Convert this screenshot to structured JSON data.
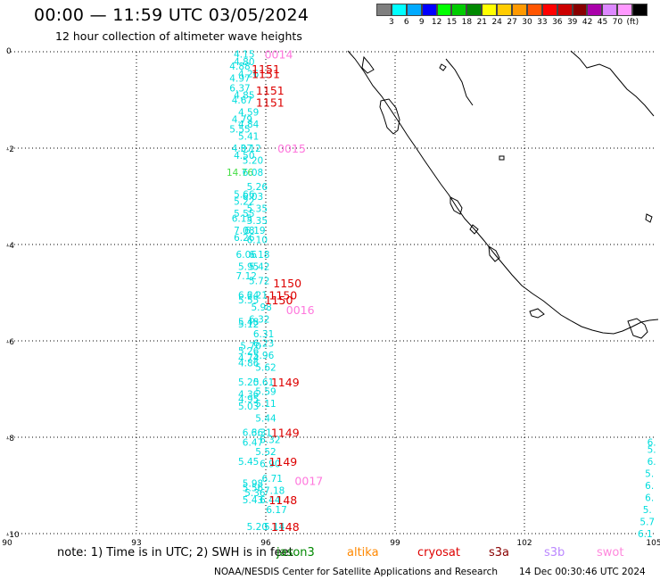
{
  "header": {
    "title": "00:00 — 11:59 UTC 03/05/2024",
    "subtitle": "12 hour collection of altimeter wave heights"
  },
  "legend": {
    "colors": [
      "#7f7f7f",
      "#00ffff",
      "#00aaff",
      "#0000ff",
      "#00ff00",
      "#00cc00",
      "#008800",
      "#ffff00",
      "#ffcc00",
      "#ff9900",
      "#ff5500",
      "#ff0000",
      "#cc0000",
      "#880000",
      "#aa00aa",
      "#dd88ff",
      "#ff99ff",
      "#000000"
    ],
    "labels": [
      "3",
      "6",
      "9",
      "12",
      "15",
      "18",
      "21",
      "24",
      "27",
      "30",
      "33",
      "36",
      "39",
      "42",
      "45",
      "70",
      "(ft)"
    ]
  },
  "axes": {
    "x_ticks": [
      "90",
      "93",
      "96",
      "99",
      "102",
      "105"
    ],
    "y_ticks": [
      "0",
      "-2",
      "-4",
      "-6",
      "-8",
      "-10"
    ]
  },
  "chart_data": {
    "type": "scatter",
    "xlim": [
      90,
      105
    ],
    "ylim": [
      -10,
      0
    ],
    "grid": true,
    "x_meaning": "longitude",
    "y_meaning": "latitude",
    "points": [
      {
        "x": 95.5,
        "y": -0.05,
        "label": "4.15",
        "color": "#00dddd"
      },
      {
        "x": 95.5,
        "y": -0.2,
        "label": "4.80",
        "color": "#00dddd"
      },
      {
        "x": 95.4,
        "y": -0.3,
        "label": "4.88",
        "color": "#00dddd"
      },
      {
        "x": 95.6,
        "y": -0.45,
        "label": "4.26",
        "color": "#00dddd"
      },
      {
        "x": 95.4,
        "y": -0.55,
        "label": "4.97",
        "color": "#00dddd"
      },
      {
        "x": 95.4,
        "y": -0.75,
        "label": "6.37",
        "color": "#00dddd"
      },
      {
        "x": 95.5,
        "y": -0.9,
        "label": "4.85",
        "color": "#00dddd"
      },
      {
        "x": 95.45,
        "y": -1.0,
        "label": "4.67",
        "color": "#00dddd"
      },
      {
        "x": 95.6,
        "y": -1.25,
        "label": "4.59",
        "color": "#00dddd"
      },
      {
        "x": 95.45,
        "y": -1.4,
        "label": "4.79",
        "color": "#00dddd"
      },
      {
        "x": 95.6,
        "y": -1.5,
        "label": "4.84",
        "color": "#00dddd"
      },
      {
        "x": 95.4,
        "y": -1.6,
        "label": "5.55",
        "color": "#00dddd"
      },
      {
        "x": 95.6,
        "y": -1.75,
        "label": "5.41",
        "color": "#00dddd"
      },
      {
        "x": 95.45,
        "y": -2.0,
        "label": "4.07",
        "color": "#00dddd"
      },
      {
        "x": 95.65,
        "y": -2.0,
        "label": "3.12",
        "color": "#00dddd"
      },
      {
        "x": 95.5,
        "y": -2.15,
        "label": "4.50",
        "color": "#00dddd"
      },
      {
        "x": 95.7,
        "y": -2.25,
        "label": "5.20",
        "color": "#00dddd"
      },
      {
        "x": 95.4,
        "y": -2.5,
        "label": "14.76",
        "color": "#44dd44"
      },
      {
        "x": 95.7,
        "y": -2.5,
        "label": "6.08",
        "color": "#00dddd"
      },
      {
        "x": 95.8,
        "y": -2.8,
        "label": "5.26",
        "color": "#00dddd"
      },
      {
        "x": 95.5,
        "y": -2.95,
        "label": "5.66",
        "color": "#00dddd"
      },
      {
        "x": 95.7,
        "y": -3.0,
        "label": "6.03",
        "color": "#00dddd"
      },
      {
        "x": 95.5,
        "y": -3.1,
        "label": "5.22",
        "color": "#00dddd"
      },
      {
        "x": 95.8,
        "y": -3.25,
        "label": "5.35",
        "color": "#00dddd"
      },
      {
        "x": 95.5,
        "y": -3.35,
        "label": "5.55",
        "color": "#00dddd"
      },
      {
        "x": 95.45,
        "y": -3.45,
        "label": "6.15",
        "color": "#00dddd"
      },
      {
        "x": 95.8,
        "y": -3.5,
        "label": "5.35",
        "color": "#00dddd"
      },
      {
        "x": 95.5,
        "y": -3.7,
        "label": "7.08",
        "color": "#00dddd"
      },
      {
        "x": 95.75,
        "y": -3.7,
        "label": "6.19",
        "color": "#00dddd"
      },
      {
        "x": 95.5,
        "y": -3.85,
        "label": "6.26",
        "color": "#00dddd"
      },
      {
        "x": 95.8,
        "y": -3.9,
        "label": "6.10",
        "color": "#00dddd"
      },
      {
        "x": 95.55,
        "y": -4.2,
        "label": "6.06",
        "color": "#00dddd"
      },
      {
        "x": 95.85,
        "y": -4.2,
        "label": "6.18",
        "color": "#00dddd"
      },
      {
        "x": 95.6,
        "y": -4.45,
        "label": "5.95",
        "color": "#00dddd"
      },
      {
        "x": 95.85,
        "y": -4.45,
        "label": "5.42",
        "color": "#00dddd"
      },
      {
        "x": 95.55,
        "y": -4.65,
        "label": "7.12",
        "color": "#00dddd"
      },
      {
        "x": 95.85,
        "y": -4.75,
        "label": "5.72",
        "color": "#00dddd"
      },
      {
        "x": 95.6,
        "y": -5.05,
        "label": "6.24",
        "color": "#00dddd"
      },
      {
        "x": 95.8,
        "y": -5.05,
        "label": "6.21",
        "color": "#00dddd"
      },
      {
        "x": 95.6,
        "y": -5.15,
        "label": "5.55",
        "color": "#00dddd"
      },
      {
        "x": 95.9,
        "y": -5.3,
        "label": "5.98",
        "color": "#00dddd"
      },
      {
        "x": 95.6,
        "y": -5.6,
        "label": "5.48",
        "color": "#00dddd"
      },
      {
        "x": 95.85,
        "y": -5.55,
        "label": "6.32",
        "color": "#00dddd"
      },
      {
        "x": 95.6,
        "y": -5.65,
        "label": "5.12",
        "color": "#00dddd"
      },
      {
        "x": 95.95,
        "y": -5.85,
        "label": "6.31",
        "color": "#00dddd"
      },
      {
        "x": 95.65,
        "y": -6.1,
        "label": "5.70",
        "color": "#00dddd"
      },
      {
        "x": 95.95,
        "y": -6.05,
        "label": "6.23",
        "color": "#00dddd"
      },
      {
        "x": 95.6,
        "y": -6.2,
        "label": "5.26",
        "color": "#00dddd"
      },
      {
        "x": 95.6,
        "y": -6.35,
        "label": "4.74",
        "color": "#00dddd"
      },
      {
        "x": 95.95,
        "y": -6.3,
        "label": "5.96",
        "color": "#00dddd"
      },
      {
        "x": 95.6,
        "y": -6.45,
        "label": "4.86",
        "color": "#00dddd"
      },
      {
        "x": 96.0,
        "y": -6.55,
        "label": "5.62",
        "color": "#00dddd"
      },
      {
        "x": 95.6,
        "y": -6.85,
        "label": "5.20",
        "color": "#00dddd"
      },
      {
        "x": 95.95,
        "y": -6.85,
        "label": "5.61",
        "color": "#00dddd"
      },
      {
        "x": 95.6,
        "y": -7.1,
        "label": "4.36",
        "color": "#00dddd"
      },
      {
        "x": 96.0,
        "y": -7.05,
        "label": "5.59",
        "color": "#00dddd"
      },
      {
        "x": 95.6,
        "y": -7.2,
        "label": "4.95",
        "color": "#00dddd"
      },
      {
        "x": 95.6,
        "y": -7.35,
        "label": "5.03",
        "color": "#00dddd"
      },
      {
        "x": 96.0,
        "y": -7.3,
        "label": "5.11",
        "color": "#00dddd"
      },
      {
        "x": 96.0,
        "y": -7.6,
        "label": "5.44",
        "color": "#00dddd"
      },
      {
        "x": 95.7,
        "y": -7.9,
        "label": "6.36",
        "color": "#00dddd"
      },
      {
        "x": 95.9,
        "y": -7.9,
        "label": "6.31",
        "color": "#00dddd"
      },
      {
        "x": 95.7,
        "y": -8.1,
        "label": "6.47",
        "color": "#00dddd"
      },
      {
        "x": 96.1,
        "y": -8.05,
        "label": "6.32",
        "color": "#00dddd"
      },
      {
        "x": 96.0,
        "y": -8.3,
        "label": "5.52",
        "color": "#00dddd"
      },
      {
        "x": 95.6,
        "y": -8.5,
        "label": "5.45",
        "color": "#00dddd"
      },
      {
        "x": 96.1,
        "y": -8.55,
        "label": "6.90",
        "color": "#00dddd"
      },
      {
        "x": 96.15,
        "y": -8.85,
        "label": "6.71",
        "color": "#00dddd"
      },
      {
        "x": 95.7,
        "y": -8.95,
        "label": "5.98",
        "color": "#00dddd"
      },
      {
        "x": 95.7,
        "y": -9.05,
        "label": "5.56",
        "color": "#00dddd"
      },
      {
        "x": 96.2,
        "y": -9.1,
        "label": "7.18",
        "color": "#00dddd"
      },
      {
        "x": 95.75,
        "y": -9.15,
        "label": "5.36",
        "color": "#00dddd"
      },
      {
        "x": 95.7,
        "y": -9.3,
        "label": "5.43",
        "color": "#00dddd"
      },
      {
        "x": 96.1,
        "y": -9.3,
        "label": "6.44",
        "color": "#00dddd"
      },
      {
        "x": 96.25,
        "y": -9.5,
        "label": "6.17",
        "color": "#00dddd"
      },
      {
        "x": 95.8,
        "y": -9.85,
        "label": "5.20",
        "color": "#00dddd"
      },
      {
        "x": 96.2,
        "y": -9.85,
        "label": "5.14",
        "color": "#00dddd"
      },
      {
        "x": 104.95,
        "y": -8.1,
        "label": "6.",
        "color": "#00dddd"
      },
      {
        "x": 104.95,
        "y": -8.25,
        "label": "5.",
        "color": "#00dddd"
      },
      {
        "x": 104.95,
        "y": -8.5,
        "label": "6.",
        "color": "#00dddd"
      },
      {
        "x": 104.9,
        "y": -8.75,
        "label": "5.",
        "color": "#00dddd"
      },
      {
        "x": 104.9,
        "y": -9.0,
        "label": "6.",
        "color": "#00dddd"
      },
      {
        "x": 104.9,
        "y": -9.25,
        "label": "6.",
        "color": "#00dddd"
      },
      {
        "x": 104.85,
        "y": -9.5,
        "label": "5.",
        "color": "#00dddd"
      },
      {
        "x": 104.85,
        "y": -9.75,
        "label": "5.7",
        "color": "#00dddd"
      },
      {
        "x": 104.8,
        "y": -10.0,
        "label": "6.1",
        "color": "#00dddd"
      }
    ],
    "time_labels": [
      {
        "x": 96.3,
        "y": -0.05,
        "label": "0014",
        "color": "#ff77dd"
      },
      {
        "x": 96.0,
        "y": -0.35,
        "label": "1151",
        "color": "#dd0000"
      },
      {
        "x": 96.0,
        "y": -0.45,
        "label": "1151",
        "color": "#dd0000"
      },
      {
        "x": 96.1,
        "y": -0.8,
        "label": "1151",
        "color": "#dd0000"
      },
      {
        "x": 96.1,
        "y": -1.05,
        "label": "1151",
        "color": "#dd0000"
      },
      {
        "x": 96.6,
        "y": -2.0,
        "label": "0015",
        "color": "#ff77dd"
      },
      {
        "x": 96.5,
        "y": -4.8,
        "label": "1150",
        "color": "#dd0000"
      },
      {
        "x": 96.4,
        "y": -5.05,
        "label": "1150",
        "color": "#dd0000"
      },
      {
        "x": 96.3,
        "y": -5.15,
        "label": "1150",
        "color": "#dd0000"
      },
      {
        "x": 96.8,
        "y": -5.35,
        "label": "0016",
        "color": "#ff77dd"
      },
      {
        "x": 96.45,
        "y": -6.85,
        "label": "1149",
        "color": "#dd0000"
      },
      {
        "x": 96.45,
        "y": -7.9,
        "label": "1149",
        "color": "#dd0000"
      },
      {
        "x": 96.4,
        "y": -8.5,
        "label": "1149",
        "color": "#dd0000"
      },
      {
        "x": 97.0,
        "y": -8.9,
        "label": "0017",
        "color": "#ff77dd"
      },
      {
        "x": 96.4,
        "y": -9.3,
        "label": "1148",
        "color": "#dd0000"
      },
      {
        "x": 96.45,
        "y": -9.85,
        "label": "1148",
        "color": "#dd0000"
      }
    ]
  },
  "footer": {
    "note": "note:  1) Time is in UTC;  2) SWH is in feet",
    "satellites": [
      {
        "name": "jason3",
        "color": "#008800"
      },
      {
        "name": "altika",
        "color": "#ff8800"
      },
      {
        "name": "cryosat",
        "color": "#dd0000"
      },
      {
        "name": "s3a",
        "color": "#880000"
      },
      {
        "name": "s3b",
        "color": "#bb88ff"
      },
      {
        "name": "swot",
        "color": "#ff88dd"
      }
    ],
    "credit": "NOAA/NESDIS Center for Satellite Applications and Research",
    "generated": "14 Dec 00:30:46 UTC 2024"
  }
}
